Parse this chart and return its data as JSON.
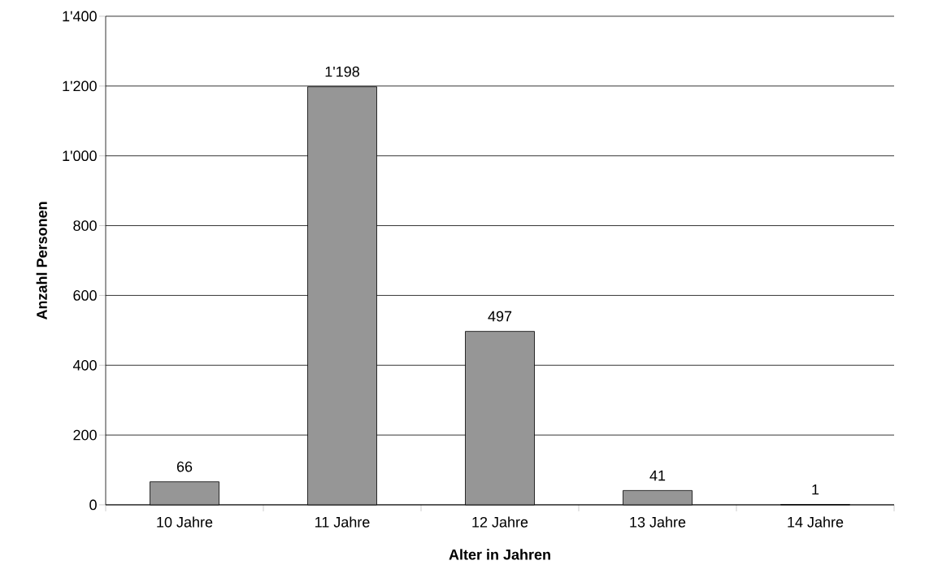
{
  "chart_data": {
    "type": "bar",
    "xlabel": "Alter in Jahren",
    "ylabel": "Anzahl Personen",
    "categories": [
      "10 Jahre",
      "11 Jahre",
      "12 Jahre",
      "13 Jahre",
      "14 Jahre"
    ],
    "values": [
      66,
      1198,
      497,
      41,
      1
    ],
    "value_labels": [
      "66",
      "1'198",
      "497",
      "41",
      "1"
    ],
    "color": "#969696",
    "ylim": [
      0,
      1400
    ],
    "yticks": [
      0,
      200,
      400,
      600,
      800,
      {
        "value": 1000,
        "label": "1'000"
      },
      {
        "value": 1200,
        "label": "1'200"
      },
      {
        "value": 1400,
        "label": "1'400"
      }
    ],
    "grid": "y"
  }
}
